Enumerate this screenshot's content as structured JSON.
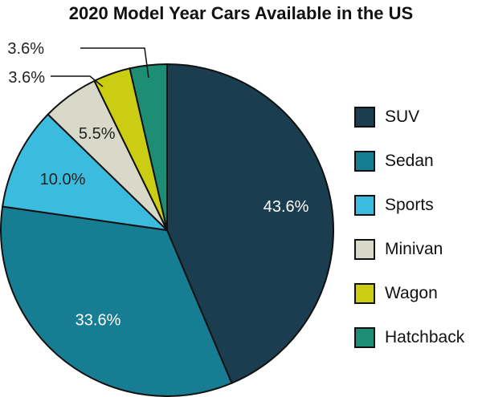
{
  "chart_data": {
    "type": "pie",
    "title": "2020 Model Year Cars Available in the US",
    "categories": [
      "SUV",
      "Sedan",
      "Sports",
      "Minivan",
      "Wagon",
      "Hatchback"
    ],
    "values": [
      43.6,
      33.6,
      10.0,
      5.5,
      3.6,
      3.6
    ],
    "data_labels": [
      "43.6%",
      "33.6%",
      "10.0%",
      "5.5%",
      "3.6%",
      "3.6%"
    ],
    "colors": [
      "#1a3d4f",
      "#167d93",
      "#3bbcdf",
      "#d8d9c9",
      "#cbcd12",
      "#1d8e74"
    ],
    "label_colors": [
      "#ffffff",
      "#ffffff",
      "#222222",
      "#222222",
      "#222222",
      "#222222"
    ],
    "legend_position": "right"
  }
}
